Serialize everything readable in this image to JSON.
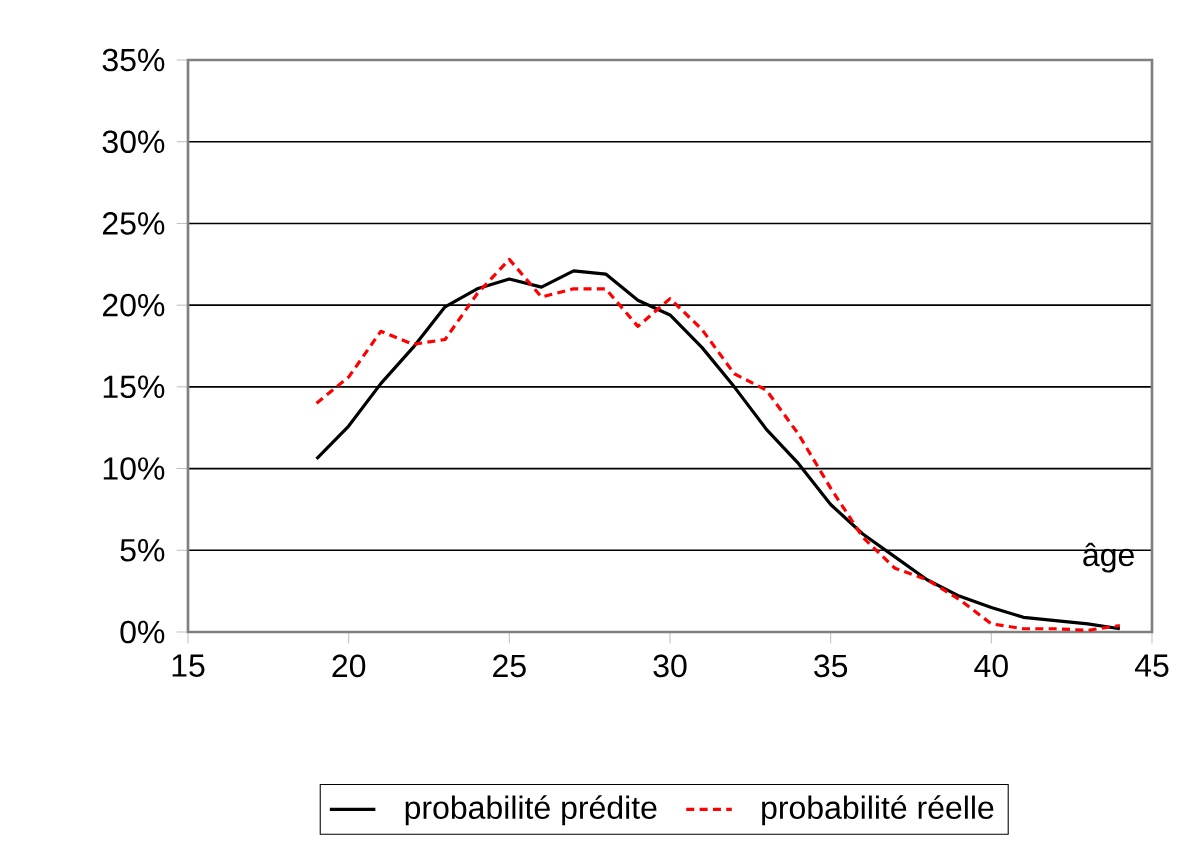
{
  "chart_data": {
    "type": "line",
    "xlabel": "âge",
    "x": [
      19,
      20,
      21,
      22,
      23,
      24,
      25,
      26,
      27,
      28,
      29,
      30,
      31,
      32,
      33,
      34,
      35,
      36,
      37,
      38,
      39,
      40,
      41,
      42,
      43,
      44
    ],
    "series": [
      {
        "name": "probabilité prédite",
        "color": "#000000",
        "line_style": "solid",
        "values": [
          10.6,
          12.6,
          15.2,
          17.4,
          19.9,
          21.0,
          21.6,
          21.1,
          22.1,
          21.9,
          20.3,
          19.4,
          17.4,
          15.0,
          12.4,
          10.3,
          7.8,
          6.0,
          4.6,
          3.2,
          2.2,
          1.5,
          0.9,
          0.7,
          0.5,
          0.2
        ]
      },
      {
        "name": "probabilité réelle",
        "color": "#ff0000",
        "line_style": "dashed",
        "values": [
          14.0,
          15.6,
          18.4,
          17.6,
          17.9,
          20.7,
          22.8,
          20.5,
          21.0,
          21.0,
          18.7,
          20.4,
          18.5,
          15.8,
          14.8,
          12.1,
          8.8,
          5.8,
          3.9,
          3.2,
          2.0,
          0.5,
          0.2,
          0.2,
          0.1,
          0.4
        ]
      }
    ],
    "xlim": [
      15,
      45
    ],
    "xticks": [
      15,
      20,
      25,
      30,
      35,
      40,
      45
    ],
    "ylim": [
      0,
      35
    ],
    "yticks": [
      {
        "value": 0,
        "label": "0%"
      },
      {
        "value": 5,
        "label": "5%"
      },
      {
        "value": 10,
        "label": "10%"
      },
      {
        "value": 15,
        "label": "15%"
      },
      {
        "value": 20,
        "label": "20%"
      },
      {
        "value": 25,
        "label": "25%"
      },
      {
        "value": 30,
        "label": "30%"
      },
      {
        "value": 35,
        "label": "35%"
      }
    ],
    "grid": "y",
    "legend": "bottom",
    "marker": "none"
  }
}
